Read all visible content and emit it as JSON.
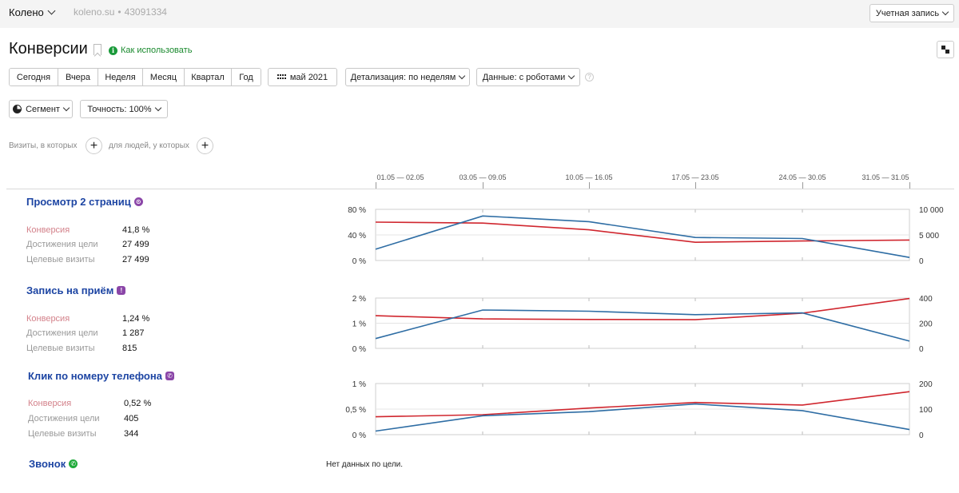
{
  "header": {
    "site_name": "Колено",
    "site_domain": "koleno.su",
    "site_separator": "•",
    "counter_id": "43091334",
    "account_label": "Учетная запись"
  },
  "page": {
    "title": "Конверсии",
    "howto_label": "Как использовать",
    "info_icon_glyph": "i"
  },
  "toolbar": {
    "periods": [
      "Сегодня",
      "Вчера",
      "Неделя",
      "Месяц",
      "Квартал",
      "Год"
    ],
    "date_range": "май 2021",
    "detail_label": "Детализация: по неделям",
    "data_label": "Данные: с роботами",
    "help_glyph": "?",
    "segment_label": "Сегмент",
    "accuracy_label": "Точность: 100%"
  },
  "filters": {
    "visits_label": "Визиты, в которых",
    "people_label": "для людей, у которых",
    "plus_glyph": "+"
  },
  "weeks": [
    "01.05 — 02.05",
    "03.05 — 09.05",
    "10.05 — 16.05",
    "17.05 — 23.05",
    "24.05 — 30.05",
    "31.05 — 31.05"
  ],
  "colors": {
    "conversion_line": "#d0262e",
    "visits_line": "#2e6da4",
    "title_link": "#1d45a3",
    "conversion_label": "#d3818a"
  },
  "goals": [
    {
      "title": "Просмотр 2 страниц",
      "icon": "pages-icon",
      "icon_glyph": "⊙",
      "conversion_label": "Конверсия",
      "conversion": "41,8 %",
      "reaches_label": "Достижения цели",
      "reaches": "27 499",
      "visits_label": "Целевые визиты",
      "visits": "27 499"
    },
    {
      "title": "Запись на приём",
      "icon": "exclamation-icon",
      "icon_glyph": "!",
      "conversion_label": "Конверсия",
      "conversion": "1,24 %",
      "reaches_label": "Достижения цели",
      "reaches": "1 287",
      "visits_label": "Целевые визиты",
      "visits": "815"
    },
    {
      "title": "Клик по номеру телефона",
      "icon": "phone-icon",
      "icon_glyph": "✆",
      "conversion_label": "Конверсия",
      "conversion": "0,52 %",
      "reaches_label": "Достижения цели",
      "reaches": "405",
      "visits_label": "Целевые визиты",
      "visits": "344"
    },
    {
      "title": "Звонок",
      "icon": "call-icon",
      "icon_glyph": "✆",
      "no_data": "Нет данных по цели."
    }
  ],
  "chart_data": [
    {
      "type": "line",
      "x": [
        "01.05 — 02.05",
        "03.05 — 09.05",
        "10.05 — 16.05",
        "17.05 — 23.05",
        "24.05 — 30.05",
        "31.05 — 31.05"
      ],
      "y_left_ticks": [
        "0 %",
        "40 %",
        "80 %"
      ],
      "y_left_range": [
        0,
        80
      ],
      "y_right_ticks": [
        "0",
        "5 000",
        "10 000"
      ],
      "y_right_range": [
        0,
        10000
      ],
      "series": [
        {
          "axis": "left",
          "color": "#d0262e",
          "values": [
            60,
            58.5,
            48,
            28.5,
            30.5,
            32
          ]
        },
        {
          "axis": "right",
          "color": "#2e6da4",
          "values": [
            2200,
            8700,
            7600,
            4500,
            4300,
            600
          ]
        }
      ],
      "grid": true
    },
    {
      "type": "line",
      "x": [
        "01.05 — 02.05",
        "03.05 — 09.05",
        "10.05 — 16.05",
        "17.05 — 23.05",
        "24.05 — 30.05",
        "31.05 — 31.05"
      ],
      "y_left_ticks": [
        "0 %",
        "1 %",
        "2 %"
      ],
      "y_left_range": [
        0,
        2
      ],
      "y_right_ticks": [
        "0",
        "200",
        "400"
      ],
      "y_right_range": [
        0,
        400
      ],
      "series": [
        {
          "axis": "left",
          "color": "#d0262e",
          "values": [
            1.3,
            1.17,
            1.15,
            1.14,
            1.4,
            1.98
          ]
        },
        {
          "axis": "right",
          "color": "#2e6da4",
          "values": [
            78,
            305,
            295,
            268,
            282,
            58
          ]
        }
      ],
      "grid": true
    },
    {
      "type": "line",
      "x": [
        "01.05 — 02.05",
        "03.05 — 09.05",
        "10.05 — 16.05",
        "17.05 — 23.05",
        "24.05 — 30.05",
        "31.05 — 31.05"
      ],
      "y_left_ticks": [
        "0 %",
        "0,5 %",
        "1 %"
      ],
      "y_left_range": [
        0,
        1
      ],
      "y_right_ticks": [
        "0",
        "100",
        "200"
      ],
      "y_right_range": [
        0,
        200
      ],
      "series": [
        {
          "axis": "left",
          "color": "#d0262e",
          "values": [
            0.35,
            0.39,
            0.52,
            0.63,
            0.58,
            0.84
          ]
        },
        {
          "axis": "right",
          "color": "#2e6da4",
          "values": [
            14,
            74,
            90,
            120,
            94,
            20
          ]
        }
      ],
      "grid": true
    }
  ]
}
